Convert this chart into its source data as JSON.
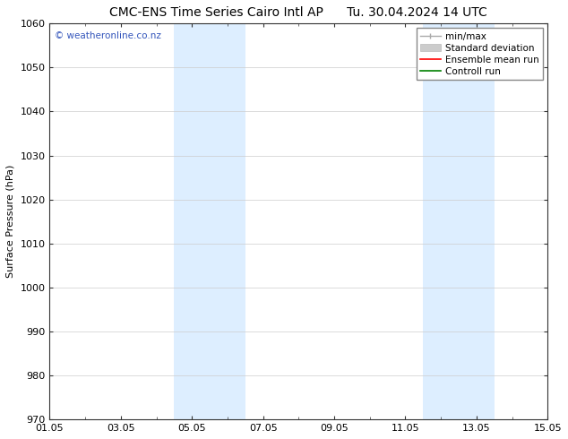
{
  "title_left": "CMC-ENS Time Series Cairo Intl AP",
  "title_right": "Tu. 30.04.2024 14 UTC",
  "ylabel": "Surface Pressure (hPa)",
  "ylim": [
    970,
    1060
  ],
  "yticks": [
    970,
    980,
    990,
    1000,
    1010,
    1020,
    1030,
    1040,
    1050,
    1060
  ],
  "xtick_labels": [
    "01.05",
    "03.05",
    "05.05",
    "07.05",
    "09.05",
    "11.05",
    "13.05",
    "15.05"
  ],
  "xtick_positions": [
    0,
    2,
    4,
    6,
    8,
    10,
    12,
    14
  ],
  "shade_regions": [
    {
      "start": 3.5,
      "end": 5.5
    },
    {
      "start": 10.5,
      "end": 12.5
    }
  ],
  "shade_color": "#ddeeff",
  "watermark_text": "© weatheronline.co.nz",
  "watermark_color": "#3355bb",
  "bg_color": "#ffffff",
  "grid_color": "#cccccc",
  "title_fontsize": 10,
  "axis_label_fontsize": 8,
  "tick_fontsize": 8,
  "legend_fontsize": 7.5
}
